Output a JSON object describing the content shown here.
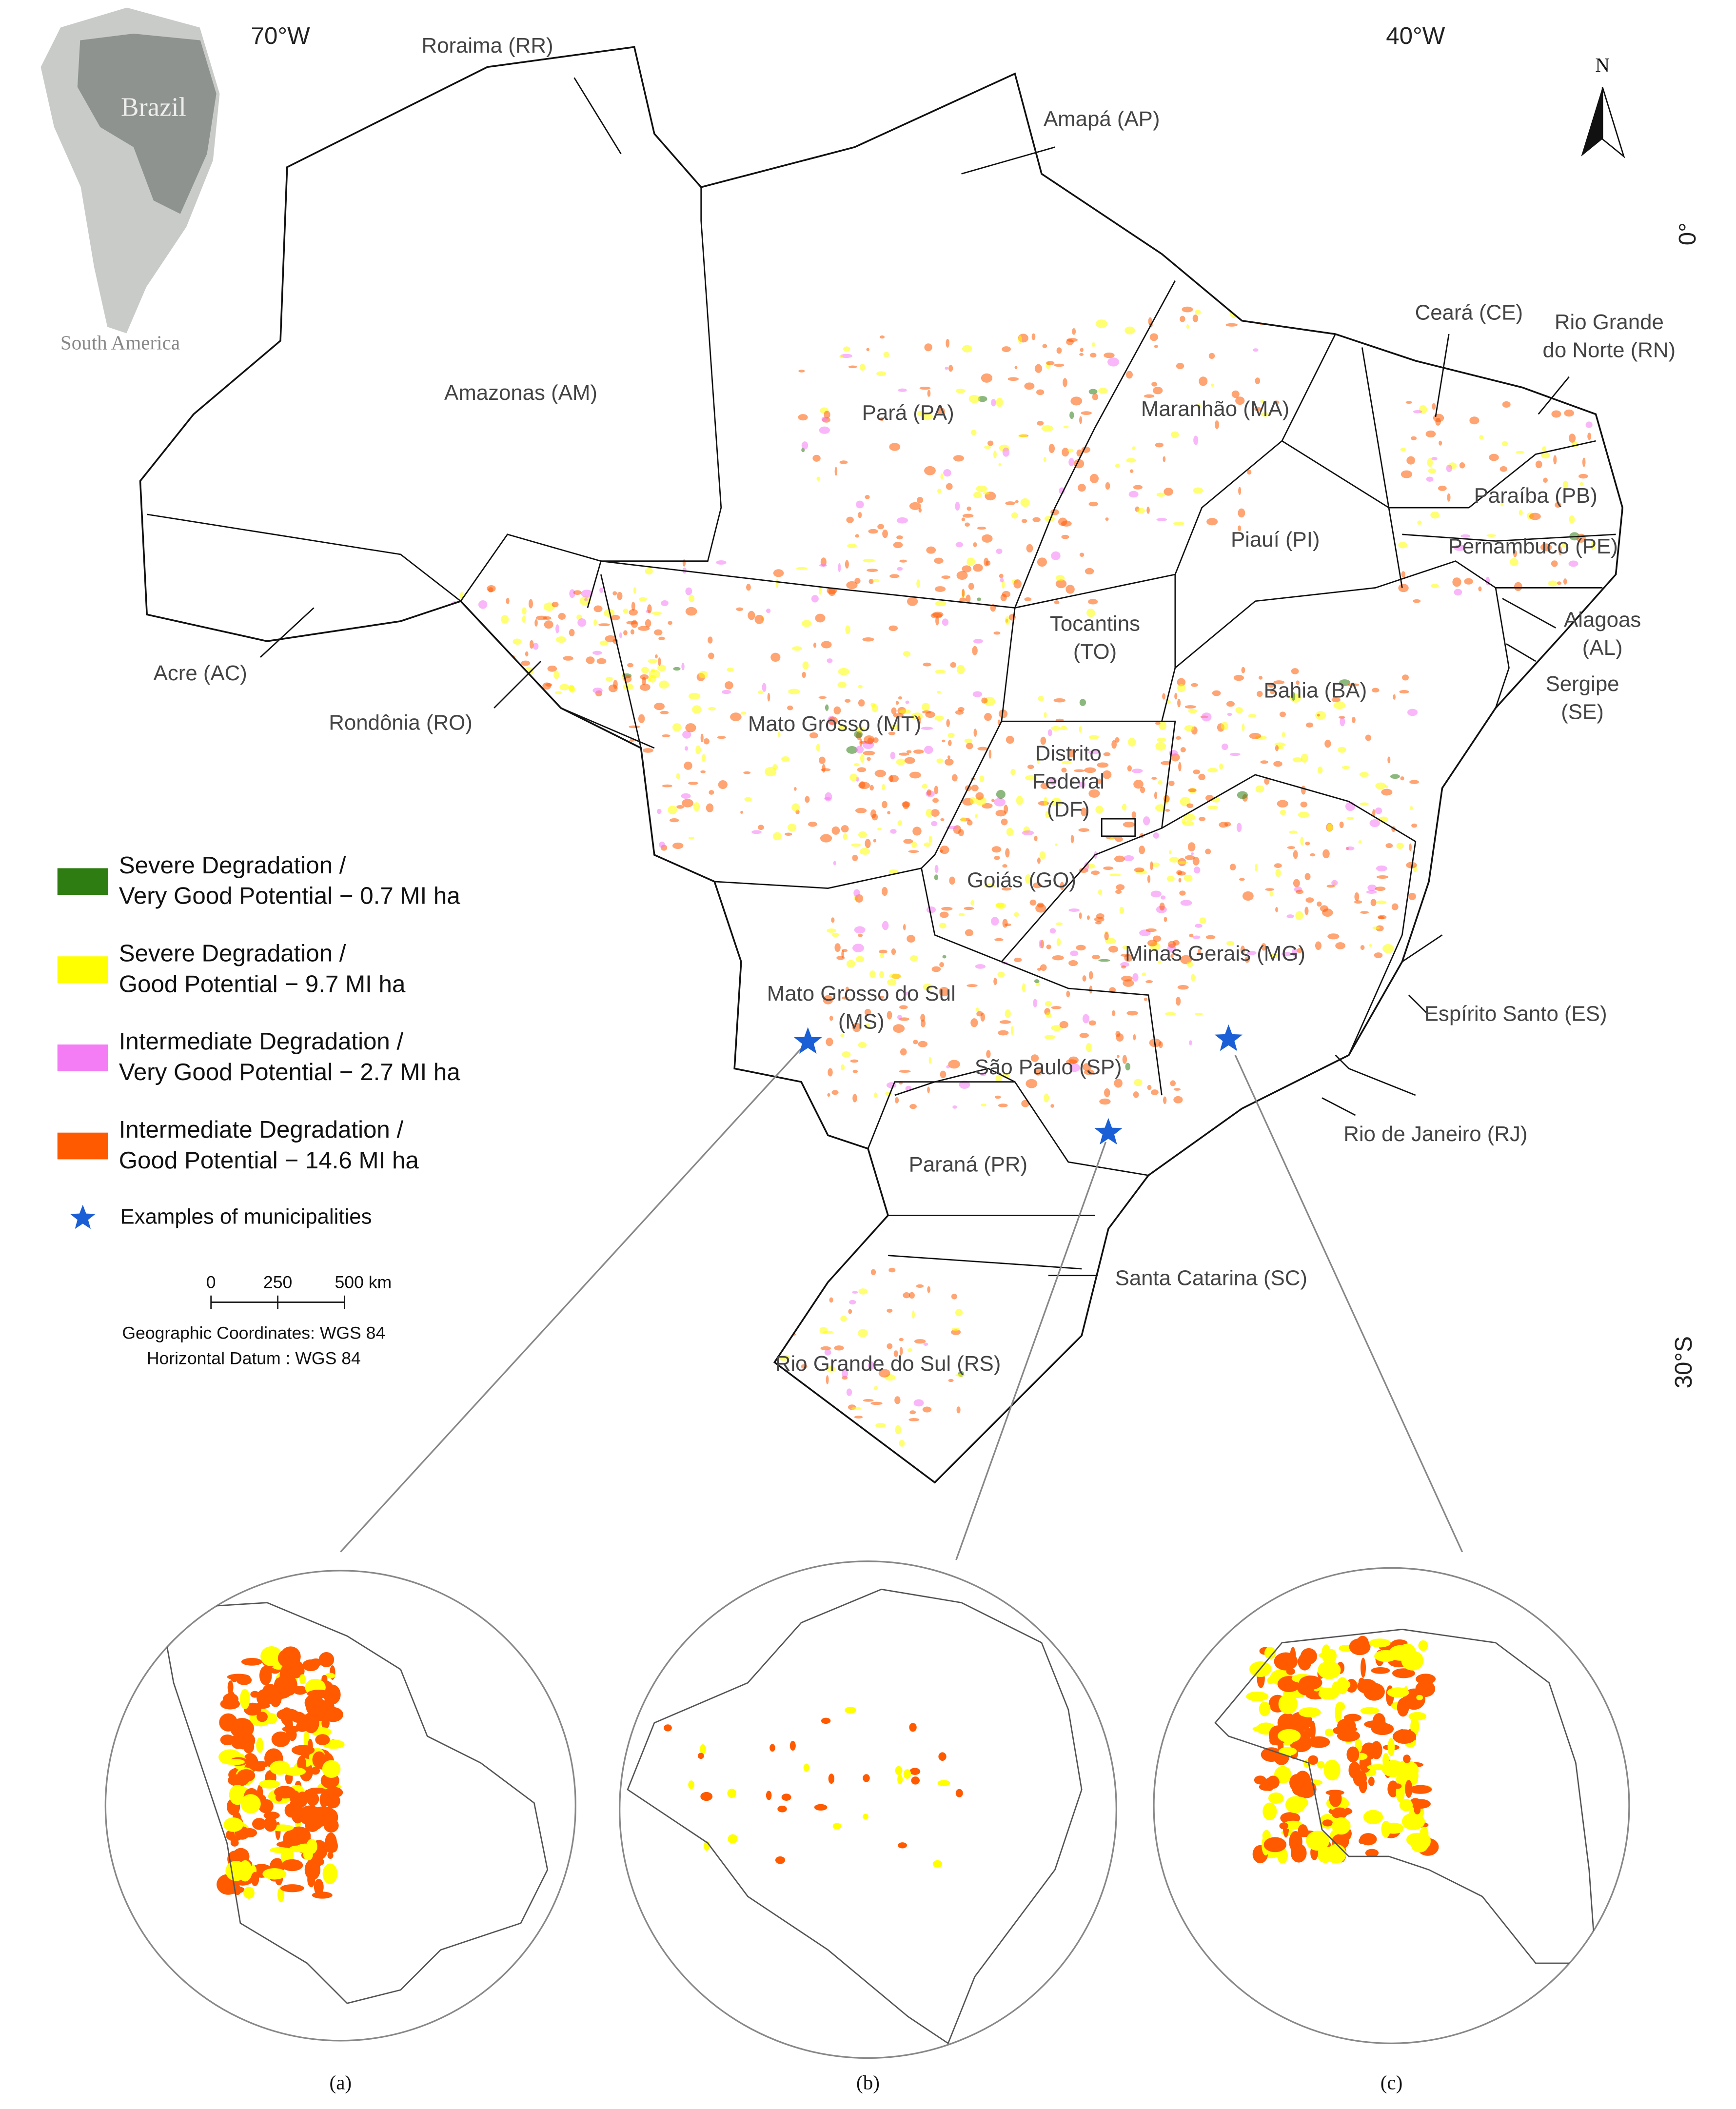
{
  "map": {
    "coordinates": {
      "lon_west": "70°W",
      "lon_east": "40°W",
      "lat_equator": "0°",
      "lat_south": "30°S"
    },
    "north_arrow": "N",
    "locator": {
      "country": "Brazil",
      "continent": "South America"
    },
    "states": [
      {
        "lines": [
          "Roraima (RR)"
        ]
      },
      {
        "lines": [
          "Amapá (AP)"
        ]
      },
      {
        "lines": [
          "Amazonas (AM)"
        ]
      },
      {
        "lines": [
          "Pará (PA)"
        ]
      },
      {
        "lines": [
          "Maranhão (MA)"
        ]
      },
      {
        "lines": [
          "Ceará (CE)"
        ]
      },
      {
        "lines": [
          "Rio Grande",
          "do Norte (RN)"
        ]
      },
      {
        "lines": [
          "Paraíba (PB)"
        ]
      },
      {
        "lines": [
          "Piauí (PI)"
        ]
      },
      {
        "lines": [
          "Pernambuco (PE)"
        ]
      },
      {
        "lines": [
          "Alagoas",
          "(AL)"
        ]
      },
      {
        "lines": [
          "Acre (AC)"
        ]
      },
      {
        "lines": [
          "Rondônia (RO)"
        ]
      },
      {
        "lines": [
          "Tocantins",
          "(TO)"
        ]
      },
      {
        "lines": [
          "Sergipe",
          "(SE)"
        ]
      },
      {
        "lines": [
          "Bahia (BA)"
        ]
      },
      {
        "lines": [
          "Mato Grosso (MT)"
        ]
      },
      {
        "lines": [
          "Distrito",
          "Federal",
          "(DF)"
        ]
      },
      {
        "lines": [
          "Goiás (GO)"
        ]
      },
      {
        "lines": [
          "Minas Gerais (MG)"
        ]
      },
      {
        "lines": [
          "Espírito Santo (ES)"
        ]
      },
      {
        "lines": [
          "Mato Grosso do Sul",
          "(MS)"
        ]
      },
      {
        "lines": [
          "São Paulo (SP)"
        ]
      },
      {
        "lines": [
          "Rio de Janeiro (RJ)"
        ]
      },
      {
        "lines": [
          "Paraná (PR)"
        ]
      },
      {
        "lines": [
          "Santa Catarina (SC)"
        ]
      },
      {
        "lines": [
          "Rio Grande do Sul (RS)"
        ]
      }
    ],
    "legend": {
      "items": [
        {
          "lines": [
            "Severe Degradation /",
            "Very Good Potential − 0.7 MI ha"
          ],
          "color": "#2e7d12"
        },
        {
          "lines": [
            "Severe Degradation /",
            "Good Potential − 9.7 MI ha"
          ],
          "color": "#ffff00"
        },
        {
          "lines": [
            "Intermediate Degradation /",
            "Very Good Potential − 2.7 MI ha"
          ],
          "color": "#f47cf4"
        },
        {
          "lines": [
            "Intermediate Degradation /",
            "Good Potential − 14.6 MI ha"
          ],
          "color": "#ff5a00"
        }
      ],
      "marker": {
        "label": "Examples of municipalities",
        "color": "#1a5fd6"
      }
    },
    "scale_bar": [
      "0",
      "250",
      "500 km"
    ],
    "reference": [
      "Geographic Coordinates: WGS 84",
      "Horizontal Datum : WGS 84"
    ],
    "insets": [
      "(a)",
      "(b)",
      "(c)"
    ]
  }
}
